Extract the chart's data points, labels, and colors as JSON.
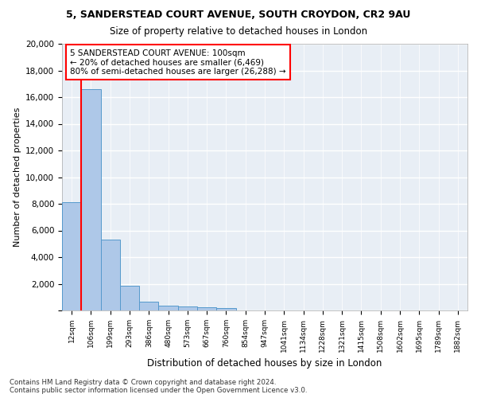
{
  "title1": "5, SANDERSTEAD COURT AVENUE, SOUTH CROYDON, CR2 9AU",
  "title2": "Size of property relative to detached houses in London",
  "xlabel": "Distribution of detached houses by size in London",
  "ylabel": "Number of detached properties",
  "bar_labels": [
    "12sqm",
    "106sqm",
    "199sqm",
    "293sqm",
    "386sqm",
    "480sqm",
    "573sqm",
    "667sqm",
    "760sqm",
    "854sqm",
    "947sqm",
    "1041sqm",
    "1134sqm",
    "1228sqm",
    "1321sqm",
    "1415sqm",
    "1508sqm",
    "1602sqm",
    "1695sqm",
    "1789sqm",
    "1882sqm"
  ],
  "bar_values": [
    8100,
    16600,
    5300,
    1850,
    680,
    350,
    270,
    210,
    200,
    0,
    0,
    0,
    0,
    0,
    0,
    0,
    0,
    0,
    0,
    0,
    0
  ],
  "bar_color": "#aec8e8",
  "bar_edgecolor": "#5599cc",
  "annotation_text_line1": "5 SANDERSTEAD COURT AVENUE: 100sqm",
  "annotation_text_line2": "← 20% of detached houses are smaller (6,469)",
  "annotation_text_line3": "80% of semi-detached houses are larger (26,288) →",
  "annotation_box_facecolor": "white",
  "annotation_box_edgecolor": "red",
  "vline_color": "red",
  "vline_x": 0.5,
  "ylim": [
    0,
    20000
  ],
  "yticks": [
    0,
    2000,
    4000,
    6000,
    8000,
    10000,
    12000,
    14000,
    16000,
    18000,
    20000
  ],
  "grid_color": "white",
  "plot_bg_color": "#e8eef5",
  "footer_line1": "Contains HM Land Registry data © Crown copyright and database right 2024.",
  "footer_line2": "Contains public sector information licensed under the Open Government Licence v3.0."
}
